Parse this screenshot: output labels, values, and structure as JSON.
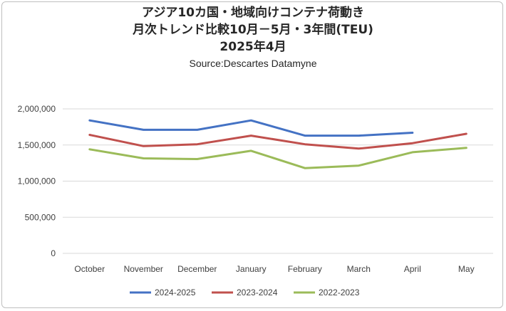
{
  "chart_data": {
    "type": "line",
    "title_lines": [
      "アジア10カ国・地域向けコンテナ荷動き",
      "月次トレンド比較10月－5月・3年間(TEU)",
      "2025年4月"
    ],
    "subtitle": "Source:Descartes Datamyne",
    "categories": [
      "October",
      "November",
      "December",
      "January",
      "February",
      "March",
      "April",
      "May"
    ],
    "y_ticks": [
      "2,000,000",
      "1,500,000",
      "1,000,000",
      "500,000",
      "0"
    ],
    "ylim": [
      0,
      2000000
    ],
    "grid": true,
    "legend_position": "bottom",
    "series": [
      {
        "name": "2024-2025",
        "color": "#4472c4",
        "values": [
          1840000,
          1710000,
          1710000,
          1840000,
          1630000,
          1630000,
          1670000,
          null
        ]
      },
      {
        "name": "2023-2024",
        "color": "#c0504d",
        "values": [
          1640000,
          1485000,
          1510000,
          1630000,
          1510000,
          1450000,
          1525000,
          1655000
        ]
      },
      {
        "name": "2022-2023",
        "color": "#9bbb59",
        "values": [
          1440000,
          1315000,
          1305000,
          1420000,
          1180000,
          1215000,
          1400000,
          1460000
        ]
      }
    ]
  }
}
